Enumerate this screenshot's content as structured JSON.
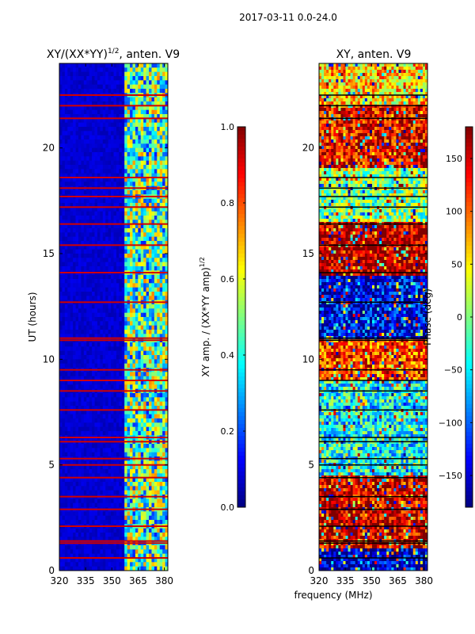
{
  "figure": {
    "suptitle": "2017-03-11 0.0-24.0",
    "xlabel": "frequency (MHz)"
  },
  "chart_data": [
    {
      "type": "heatmap",
      "title": "XY/(XX*YY)",
      "title_sup": "1/2",
      "title_suffix": ", anten. V9",
      "xlabel": "",
      "ylabel": "UT (hours)",
      "xlim": [
        320,
        382
      ],
      "ylim": [
        0,
        24
      ],
      "x_ticks": [
        320,
        335,
        350,
        365,
        380
      ],
      "y_ticks": [
        0,
        5,
        10,
        15,
        20
      ],
      "colormap": "jet",
      "colorbar": {
        "label": "XY amp. / (XX*YY amp)",
        "label_sup": "1/2",
        "range": [
          0.0,
          1.0
        ],
        "ticks": [
          "0.0",
          "0.2",
          "0.4",
          "0.6",
          "0.8",
          "1.0"
        ]
      },
      "description_levels": {
        "background_value": 0.08,
        "high_freq_band_mhz": [
          357,
          382
        ],
        "high_freq_band_value_range": [
          0.3,
          0.75
        ],
        "bad_time_rows_hours": [
          0.6,
          1.3,
          1.4,
          2.1,
          2.9,
          3.5,
          4.4,
          5.0,
          5.3,
          6.1,
          6.3,
          7.6,
          8.5,
          9.0,
          9.5,
          10.9,
          11.0,
          12.7,
          14.1,
          15.4,
          16.4,
          17.2,
          17.7,
          18.1,
          18.6,
          21.4,
          22.0,
          22.5
        ]
      }
    },
    {
      "type": "heatmap",
      "title": "XY, anten. V9",
      "xlabel": "",
      "ylabel": "",
      "xlim": [
        320,
        382
      ],
      "ylim": [
        0,
        24
      ],
      "x_ticks": [
        320,
        335,
        350,
        365,
        380
      ],
      "y_ticks": [
        0,
        5,
        10,
        15,
        20
      ],
      "colormap": "jet",
      "colorbar": {
        "label": "Phase (deg)",
        "range": [
          -180,
          180
        ],
        "ticks": [
          "−150",
          "−100",
          "−50",
          "0",
          "50",
          "100",
          "150"
        ]
      },
      "description_levels": {
        "value_range_deg": [
          -180,
          180
        ],
        "dominant_blocks": [
          {
            "ut": [
              1.0,
              4.5
            ],
            "phase": 150
          },
          {
            "ut": [
              4.5,
              9.0
            ],
            "phase": -40
          },
          {
            "ut": [
              9.0,
              11.0
            ],
            "phase": 110
          },
          {
            "ut": [
              11.0,
              14.0
            ],
            "phase": -140
          },
          {
            "ut": [
              14.0,
              16.5
            ],
            "phase": 165
          },
          {
            "ut": [
              16.5,
              19.0
            ],
            "phase": 0
          },
          {
            "ut": [
              19.0,
              22.0
            ],
            "phase": 140
          },
          {
            "ut": [
              22.0,
              24.0
            ],
            "phase": 60
          }
        ]
      }
    }
  ]
}
